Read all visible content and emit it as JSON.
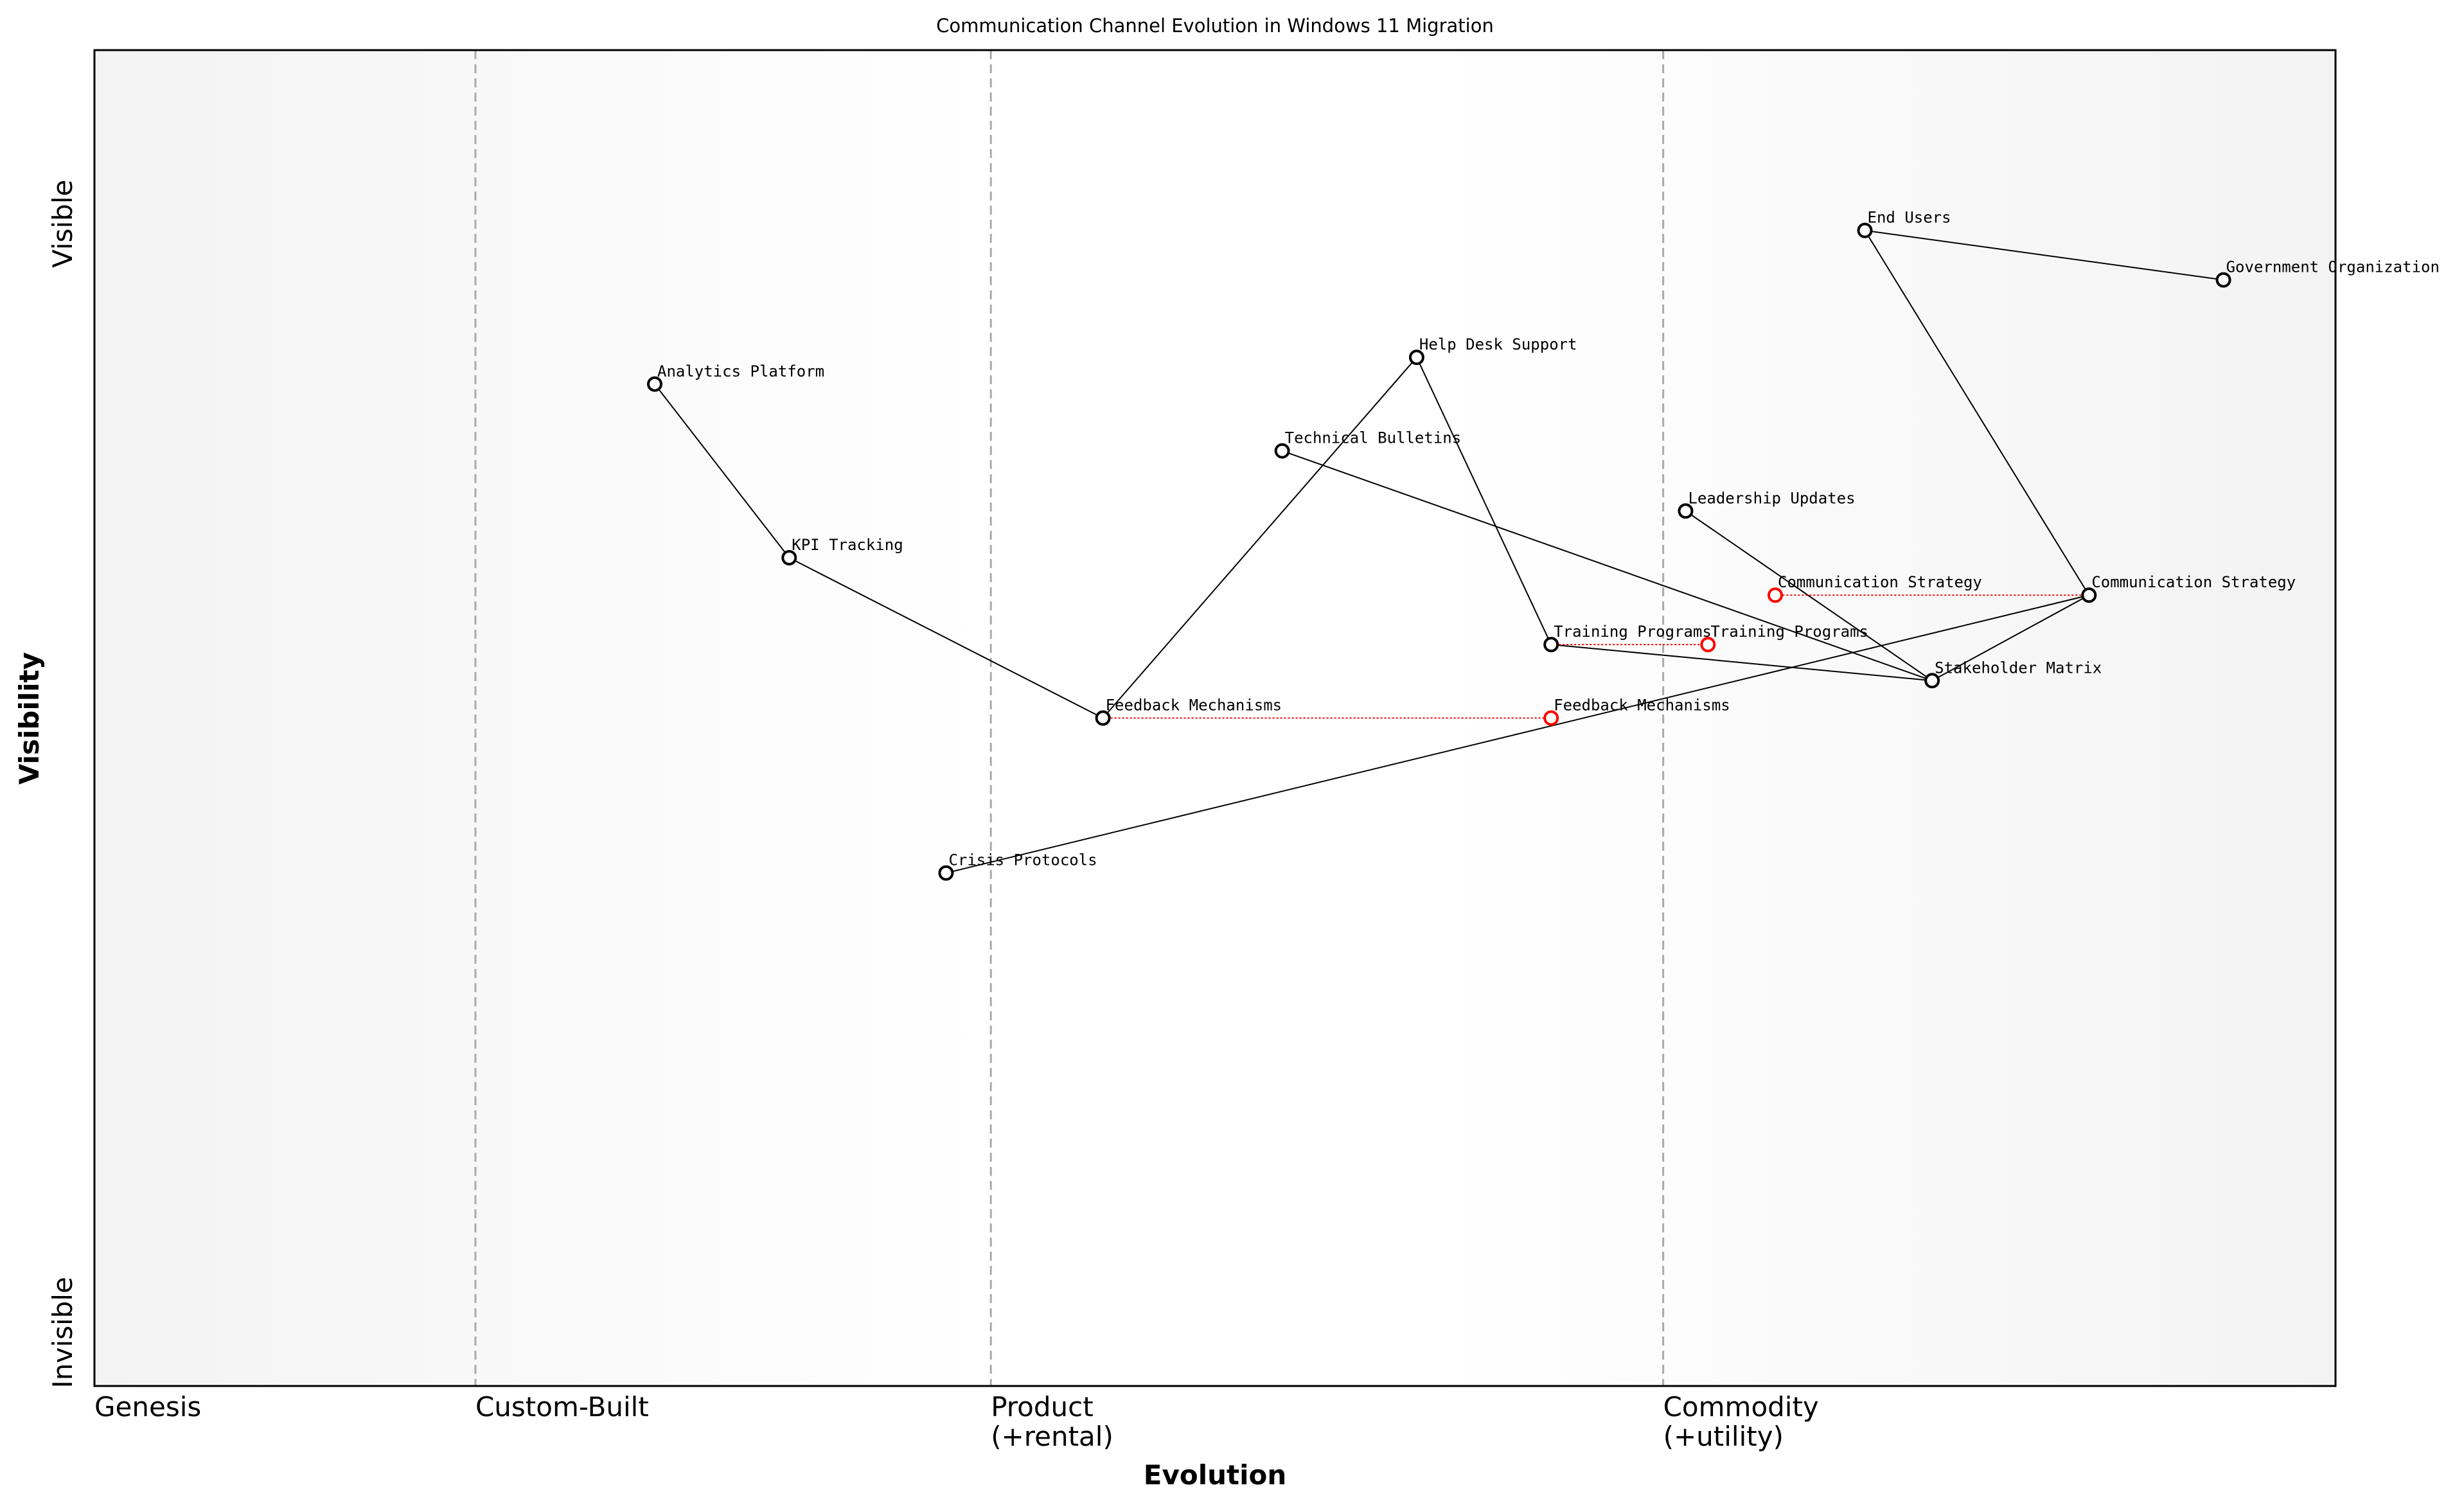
{
  "chart_data": {
    "type": "wardley",
    "title": "Communication Channel Evolution in Windows 11 Migration",
    "xlabel": "Evolution",
    "ylabel": "Visibility",
    "xlim": [
      0,
      1
    ],
    "ylim": [
      0,
      1
    ],
    "xticks": [
      {
        "value": 0,
        "label": [
          "Genesis"
        ]
      },
      {
        "value": 0.17,
        "label": [
          "Custom-Built"
        ]
      },
      {
        "value": 0.4,
        "label": [
          "Product",
          "(+rental)"
        ]
      },
      {
        "value": 0.7,
        "label": [
          "Commodity",
          "(+utility)"
        ]
      }
    ],
    "yticks": [
      {
        "value": 0.04,
        "label": "Invisible"
      },
      {
        "value": 0.87,
        "label": "Visible"
      }
    ],
    "nodes": [
      {
        "name": "Analytics Platform",
        "x": 0.25,
        "y": 0.75
      },
      {
        "name": "KPI Tracking",
        "x": 0.31,
        "y": 0.62
      },
      {
        "name": "Feedback Mechanisms",
        "x": 0.45,
        "y": 0.5
      },
      {
        "name": "Help Desk Support",
        "x": 0.59,
        "y": 0.77
      },
      {
        "name": "Technical Bulletins",
        "x": 0.53,
        "y": 0.7
      },
      {
        "name": "Training Programs",
        "x": 0.65,
        "y": 0.555
      },
      {
        "name": "Leadership Updates",
        "x": 0.71,
        "y": 0.655
      },
      {
        "name": "Stakeholder Matrix",
        "x": 0.82,
        "y": 0.528
      },
      {
        "name": "Communication Strategy",
        "x": 0.89,
        "y": 0.592
      },
      {
        "name": "End Users",
        "x": 0.79,
        "y": 0.865
      },
      {
        "name": "Government Organization",
        "x": 0.95,
        "y": 0.828
      },
      {
        "name": "Crisis Protocols",
        "x": 0.38,
        "y": 0.384
      }
    ],
    "links": [
      [
        "Analytics Platform",
        "KPI Tracking"
      ],
      [
        "KPI Tracking",
        "Feedback Mechanisms"
      ],
      [
        "Feedback Mechanisms",
        "Help Desk Support"
      ],
      [
        "Help Desk Support",
        "Training Programs"
      ],
      [
        "Training Programs",
        "Stakeholder Matrix"
      ],
      [
        "Technical Bulletins",
        "Stakeholder Matrix"
      ],
      [
        "Leadership Updates",
        "Stakeholder Matrix"
      ],
      [
        "Stakeholder Matrix",
        "Communication Strategy"
      ],
      [
        "Communication Strategy",
        "End Users"
      ],
      [
        "End Users",
        "Government Organization"
      ],
      [
        "Crisis Protocols",
        "Communication Strategy"
      ]
    ],
    "evolve": [
      {
        "name": "Feedback Mechanisms",
        "x": 0.65
      },
      {
        "name": "Training Programs",
        "x": 0.72
      },
      {
        "name": "Communication Strategy",
        "x": 0.75
      }
    ]
  }
}
